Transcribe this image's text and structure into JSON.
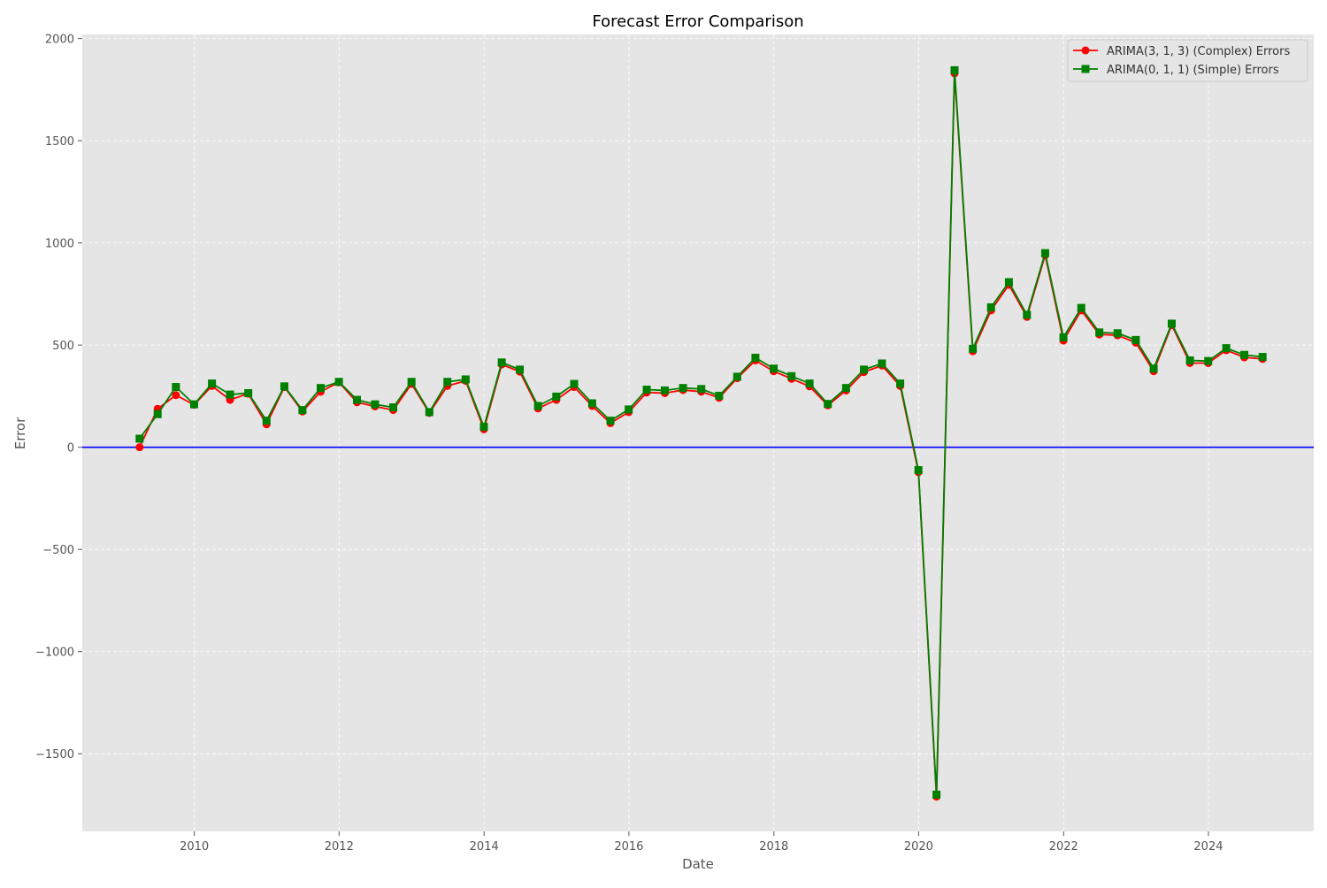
{
  "chart_data": {
    "type": "line",
    "title": "Forecast Error Comparison",
    "xlabel": "Date",
    "ylabel": "Error",
    "xlim": [
      "2008-06-15",
      "2025-06-15"
    ],
    "ylim": [
      -1880,
      2020
    ],
    "x_ticks": [
      "2010",
      "2012",
      "2014",
      "2016",
      "2018",
      "2020",
      "2022",
      "2024"
    ],
    "y_ticks": [
      2000,
      1500,
      1000,
      500,
      0,
      -500,
      -1000,
      -1500
    ],
    "y_tick_labels": [
      "2000",
      "1500",
      "1000",
      "500",
      "0",
      "−500",
      "−1000",
      "−1500"
    ],
    "grid": true,
    "legend_position": "top-right",
    "reference_line": {
      "y": 0,
      "color": "#0000ff"
    },
    "x": [
      "2009-03-31",
      "2009-06-30",
      "2009-09-30",
      "2009-12-31",
      "2010-03-31",
      "2010-06-30",
      "2010-09-30",
      "2010-12-31",
      "2011-03-31",
      "2011-06-30",
      "2011-09-30",
      "2011-12-31",
      "2012-03-31",
      "2012-06-30",
      "2012-09-30",
      "2012-12-31",
      "2013-03-31",
      "2013-06-30",
      "2013-09-30",
      "2013-12-31",
      "2014-03-31",
      "2014-06-30",
      "2014-09-30",
      "2014-12-31",
      "2015-03-31",
      "2015-06-30",
      "2015-09-30",
      "2015-12-31",
      "2016-03-31",
      "2016-06-30",
      "2016-09-30",
      "2016-12-31",
      "2017-03-31",
      "2017-06-30",
      "2017-09-30",
      "2017-12-31",
      "2018-03-31",
      "2018-06-30",
      "2018-09-30",
      "2018-12-31",
      "2019-03-31",
      "2019-06-30",
      "2019-09-30",
      "2019-12-31",
      "2020-03-31",
      "2020-06-30",
      "2020-09-30",
      "2020-12-31",
      "2021-03-31",
      "2021-06-30",
      "2021-09-30",
      "2021-12-31",
      "2022-03-31",
      "2022-06-30",
      "2022-09-30",
      "2022-12-31",
      "2023-03-31",
      "2023-06-30",
      "2023-09-30",
      "2023-12-31",
      "2024-03-31",
      "2024-06-30",
      "2024-09-30"
    ],
    "series": [
      {
        "name": "ARIMA(3, 1, 3) (Complex) Errors",
        "color": "#ff0000",
        "marker": "circle",
        "values": [
          0,
          188,
          255,
          208,
          300,
          232,
          262,
          112,
          295,
          175,
          272,
          318,
          220,
          200,
          182,
          310,
          168,
          300,
          325,
          88,
          405,
          370,
          190,
          232,
          295,
          202,
          118,
          172,
          268,
          265,
          280,
          272,
          242,
          338,
          425,
          372,
          335,
          298,
          205,
          278,
          368,
          400,
          300,
          -122,
          -1710,
          1830,
          470,
          670,
          795,
          638,
          940,
          522,
          670,
          552,
          548,
          512,
          372,
          598,
          412,
          412,
          475,
          440,
          432
        ]
      },
      {
        "name": "ARIMA(0, 1, 1) (Simple) Errors",
        "color": "#008000",
        "marker": "square",
        "values": [
          42,
          162,
          295,
          210,
          312,
          258,
          265,
          130,
          298,
          182,
          290,
          320,
          232,
          210,
          195,
          320,
          172,
          320,
          332,
          100,
          415,
          380,
          202,
          248,
          310,
          215,
          130,
          185,
          282,
          278,
          290,
          285,
          252,
          345,
          438,
          385,
          348,
          312,
          212,
          290,
          380,
          410,
          312,
          -112,
          -1700,
          1845,
          482,
          685,
          808,
          648,
          950,
          538,
          682,
          562,
          558,
          525,
          385,
          605,
          425,
          422,
          485,
          452,
          442
        ]
      }
    ]
  }
}
